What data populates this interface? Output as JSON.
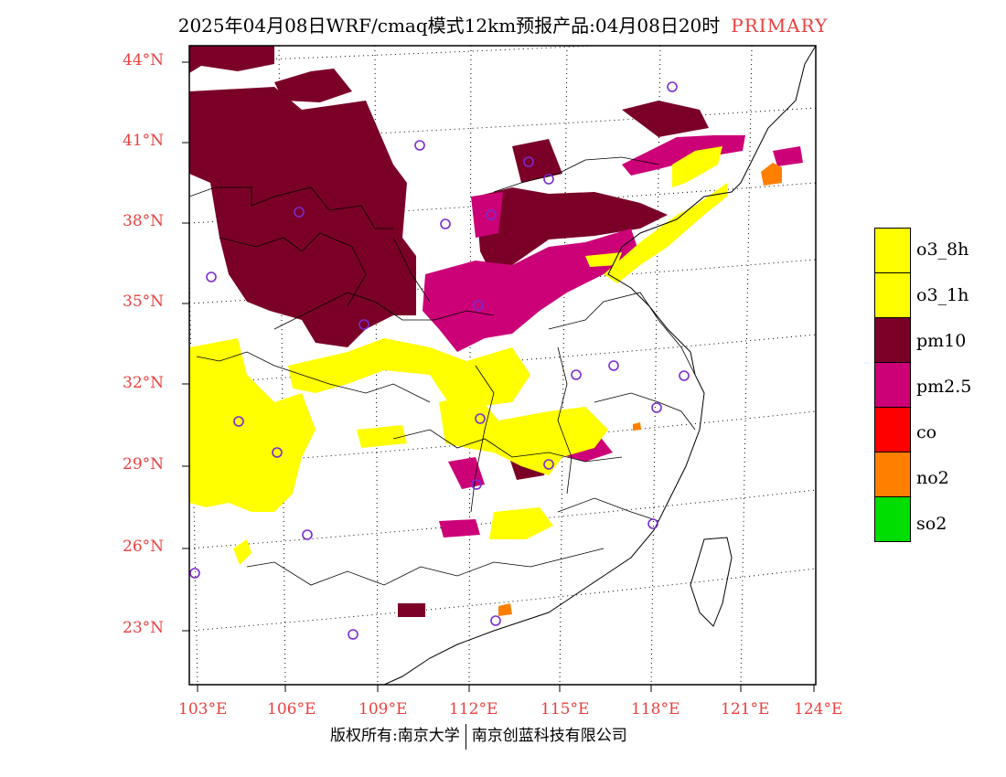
{
  "title": {
    "main": "2025年04月08日WRF/cmaq模式12km预报产品:04月08日20时",
    "tag": "PRIMARY"
  },
  "lat_labels": [
    "44°N",
    "41°N",
    "38°N",
    "35°N",
    "32°N",
    "29°N",
    "26°N",
    "23°N"
  ],
  "lon_labels": [
    "103°E",
    "106°E",
    "109°E",
    "112°E",
    "115°E",
    "118°E",
    "121°E",
    "124°E"
  ],
  "legend": [
    {
      "label": "o3_8h",
      "color": "#ffff00"
    },
    {
      "label": "o3_1h",
      "color": "#ffff00"
    },
    {
      "label": "pm10",
      "color": "#7a0028"
    },
    {
      "label": "pm2.5",
      "color": "#cc0077"
    },
    {
      "label": "co",
      "color": "#ff0000"
    },
    {
      "label": "no2",
      "color": "#ff7f00"
    },
    {
      "label": "so2",
      "color": "#00dd00"
    }
  ],
  "footer": {
    "left": "版权所有:南京大学",
    "right": "南京创蓝科技有限公司"
  }
}
